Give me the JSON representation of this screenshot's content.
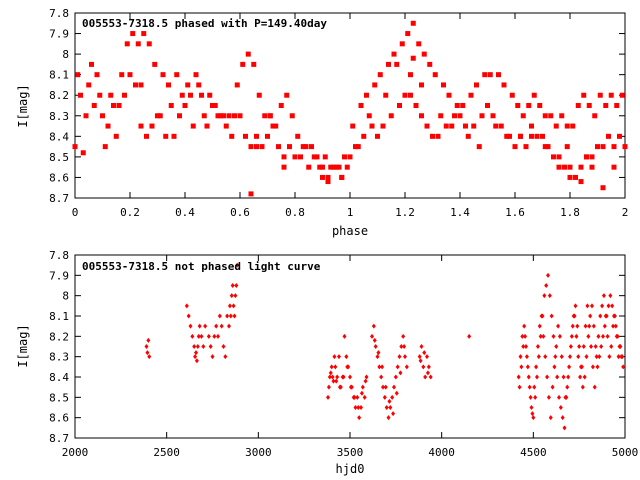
{
  "colors": {
    "points": "#ff0000",
    "axes": "#000000",
    "background": "#ffffff"
  },
  "chart_data": [
    {
      "type": "scatter",
      "title": "005553-7318.5 phased with P=149.40day",
      "xlabel": "phase",
      "ylabel": "I[mag]",
      "xlim": [
        0,
        2
      ],
      "ylim": [
        8.7,
        7.8
      ],
      "y_inverted": true,
      "xticks": [
        "0",
        "0.2",
        "0.4",
        "0.6",
        "0.8",
        "1",
        "1.2",
        "1.4",
        "1.6",
        "1.8",
        "2"
      ],
      "yticks": [
        "7.8",
        "7.9",
        "8",
        "8.1",
        "8.2",
        "8.3",
        "8.4",
        "8.5",
        "8.6",
        "8.7"
      ],
      "grid": false,
      "legend": "none",
      "marker": "filled-square",
      "series": [
        {
          "x": [
            0.0,
            0.02,
            0.05,
            0.07,
            0.1,
            0.12,
            0.15,
            0.18,
            0.2,
            0.22,
            0.24,
            0.26,
            0.28,
            0.3,
            0.33,
            0.35,
            0.38,
            0.4,
            0.42,
            0.45,
            0.47,
            0.5,
            0.52,
            0.55,
            0.58,
            0.6,
            0.62,
            0.64,
            0.66,
            0.68,
            0.7,
            0.72,
            0.74,
            0.76,
            0.78,
            0.8,
            0.82,
            0.85,
            0.87,
            0.9,
            0.92,
            0.94,
            0.96,
            0.98,
            1.0,
            1.02,
            1.05,
            1.08,
            1.1,
            1.12,
            1.15,
            1.18,
            1.2,
            1.22,
            1.24,
            1.26,
            1.28,
            1.3,
            1.32,
            1.35,
            1.38,
            1.4,
            1.42,
            1.45,
            1.48,
            1.5,
            1.52,
            1.55,
            1.58,
            1.6,
            1.62,
            1.64,
            1.66,
            1.68,
            1.7,
            1.72,
            1.74,
            1.76,
            1.78,
            1.8,
            1.82,
            1.84,
            1.86,
            1.88,
            1.9,
            1.92,
            1.94,
            1.96,
            1.98,
            2.0,
            0.01,
            0.04,
            0.06,
            0.09,
            0.11,
            0.14,
            0.17,
            0.19,
            0.21,
            0.23,
            0.25,
            0.27,
            0.29,
            0.32,
            0.34,
            0.37,
            0.39,
            0.41,
            0.44,
            0.46,
            0.49,
            0.51,
            0.54,
            0.56,
            0.59,
            0.61,
            0.63,
            0.65,
            0.67,
            0.69,
            0.71,
            0.73,
            0.75,
            0.77,
            0.79,
            0.81,
            0.84,
            0.86,
            0.88,
            0.91,
            0.93,
            0.95,
            0.97,
            0.99,
            1.01,
            1.04,
            1.06,
            1.09,
            1.11,
            1.14,
            1.16,
            1.19,
            1.21,
            1.23,
            1.25,
            1.27,
            1.29,
            1.31,
            1.34,
            1.36,
            1.39,
            1.41,
            1.44,
            1.46,
            1.49,
            1.51,
            1.54,
            1.56,
            1.59,
            1.61,
            1.63,
            1.65,
            1.67,
            1.69,
            1.71,
            1.73,
            1.75,
            1.77,
            1.79,
            1.81,
            1.83,
            1.85,
            1.87,
            1.89,
            1.91,
            1.93,
            1.95,
            1.97,
            1.99,
            0.03,
            0.08,
            0.13,
            0.16,
            0.24,
            0.31,
            0.36,
            0.43,
            0.48,
            0.53,
            0.57,
            0.66,
            0.71,
            0.76,
            0.83,
            0.89,
            0.92,
            0.97,
            1.03,
            1.07,
            1.13,
            1.17,
            1.22,
            1.26,
            1.33,
            1.37,
            1.43,
            1.47,
            1.53,
            1.57,
            1.62,
            1.66,
            1.71,
            1.76,
            1.8,
            1.84,
            1.88,
            1.92,
            1.96,
            0.64,
            0.9,
            1.23,
            1.79,
            1.86
          ],
          "y": [
            8.45,
            8.2,
            8.15,
            8.25,
            8.3,
            8.35,
            8.4,
            8.2,
            8.1,
            8.15,
            8.35,
            8.4,
            8.35,
            8.3,
            8.4,
            8.25,
            8.3,
            8.25,
            8.2,
            8.15,
            8.3,
            8.25,
            8.3,
            8.35,
            8.3,
            8.3,
            8.4,
            8.45,
            8.4,
            8.45,
            8.4,
            8.35,
            8.45,
            8.5,
            8.45,
            8.5,
            8.5,
            8.55,
            8.5,
            8.55,
            8.6,
            8.55,
            8.55,
            8.5,
            8.5,
            8.45,
            8.4,
            8.35,
            8.4,
            8.35,
            8.3,
            8.25,
            8.2,
            8.2,
            8.25,
            8.3,
            8.35,
            8.4,
            8.4,
            8.35,
            8.3,
            8.3,
            8.35,
            8.35,
            8.3,
            8.25,
            8.3,
            8.35,
            8.4,
            8.45,
            8.4,
            8.45,
            8.4,
            8.4,
            8.4,
            8.45,
            8.5,
            8.55,
            8.55,
            8.55,
            8.6,
            8.55,
            8.5,
            8.5,
            8.45,
            8.45,
            8.4,
            8.45,
            8.4,
            8.45,
            8.1,
            8.3,
            8.05,
            8.2,
            8.45,
            8.25,
            8.1,
            7.95,
            7.9,
            7.95,
            7.9,
            7.95,
            8.05,
            8.1,
            8.15,
            8.1,
            8.2,
            8.15,
            8.1,
            8.2,
            8.2,
            8.25,
            8.3,
            8.3,
            8.15,
            8.05,
            8.0,
            8.05,
            8.2,
            8.3,
            8.3,
            8.35,
            8.25,
            8.2,
            8.3,
            8.4,
            8.45,
            8.45,
            8.5,
            8.5,
            8.55,
            8.55,
            8.6,
            8.55,
            8.35,
            8.25,
            8.2,
            8.15,
            8.1,
            8.05,
            8.0,
            7.95,
            7.9,
            7.85,
            7.95,
            8.0,
            8.05,
            8.1,
            8.15,
            8.2,
            8.25,
            8.25,
            8.2,
            8.15,
            8.1,
            8.1,
            8.1,
            8.15,
            8.2,
            8.25,
            8.3,
            8.25,
            8.2,
            8.25,
            8.3,
            8.3,
            8.35,
            8.3,
            8.35,
            8.35,
            8.25,
            8.2,
            8.25,
            8.3,
            8.2,
            8.25,
            8.2,
            8.25,
            8.2,
            8.48,
            8.1,
            8.2,
            8.25,
            8.15,
            8.3,
            8.4,
            8.35,
            8.35,
            8.3,
            8.4,
            8.45,
            8.3,
            8.55,
            8.45,
            8.55,
            8.62,
            8.6,
            8.45,
            8.3,
            8.2,
            8.05,
            8.1,
            8.15,
            8.3,
            8.35,
            8.4,
            8.45,
            8.35,
            8.4,
            8.4,
            8.35,
            8.45,
            8.5,
            8.6,
            8.62,
            8.55,
            8.65,
            8.55,
            8.68,
            8.6,
            8.02,
            8.45,
            8.5
          ]
        }
      ]
    },
    {
      "type": "scatter",
      "title": "005553-7318.5 not phased light curve",
      "xlabel": "hjd0",
      "ylabel": "I[mag]",
      "xlim": [
        2000,
        5000
      ],
      "ylim": [
        8.7,
        7.8
      ],
      "y_inverted": true,
      "xticks": [
        "2000",
        "2500",
        "3000",
        "3500",
        "4000",
        "4500",
        "5000"
      ],
      "yticks": [
        "7.8",
        "7.9",
        "8",
        "8.1",
        "8.2",
        "8.3",
        "8.4",
        "8.5",
        "8.6",
        "8.7"
      ],
      "grid": false,
      "legend": "none",
      "marker": "small-diamond",
      "series": [
        {
          "x": [
            2390,
            2395,
            2400,
            2405,
            2610,
            2620,
            2630,
            2640,
            2650,
            2655,
            2660,
            2665,
            2670,
            2675,
            2680,
            2690,
            2700,
            2710,
            2730,
            2740,
            2750,
            2760,
            2770,
            2780,
            2790,
            2800,
            2810,
            2820,
            2830,
            2840,
            2845,
            2850,
            2855,
            2860,
            2865,
            2870,
            2875,
            2880,
            2885,
            3380,
            3385,
            3390,
            3395,
            3400,
            3405,
            3410,
            3415,
            3420,
            3430,
            3440,
            3450,
            3460,
            3470,
            3480,
            3490,
            3500,
            3510,
            3520,
            3530,
            3540,
            3550,
            3560,
            3570,
            3580,
            3590,
            3620,
            3630,
            3640,
            3650,
            3660,
            3670,
            3680,
            3690,
            3700,
            3710,
            3720,
            3730,
            3740,
            3750,
            3760,
            3770,
            3780,
            3790,
            3800,
            3810,
            3880,
            3890,
            3900,
            3910,
            3920,
            3930,
            3940,
            4150,
            4420,
            4430,
            4440,
            4450,
            4460,
            4470,
            4480,
            4490,
            4500,
            4510,
            4520,
            4530,
            4540,
            4550,
            4560,
            4570,
            4580,
            4590,
            4600,
            4610,
            4620,
            4630,
            4640,
            4650,
            4660,
            4670,
            4680,
            4690,
            4700,
            4710,
            4720,
            4730,
            4740,
            4750,
            4760,
            4770,
            4780,
            4790,
            4800,
            4810,
            4820,
            4830,
            4840,
            4850,
            4860,
            4870,
            4880,
            4890,
            4900,
            4910,
            4920,
            4930,
            4940,
            4950,
            4960,
            4970,
            4980,
            4990,
            4425,
            4435,
            4445,
            4455,
            4465,
            4475,
            4485,
            4495,
            4505,
            4515,
            4525,
            4535,
            4545,
            4555,
            4565,
            4575,
            4585,
            4595,
            4605,
            4615,
            4625,
            4635,
            4645,
            4655,
            4665,
            4675,
            4685,
            4695,
            4705,
            4715,
            4725,
            4735,
            4745,
            4755,
            4765,
            4775,
            4785,
            4795,
            4805,
            4815,
            4825,
            4835,
            4845,
            4855,
            4865,
            4875,
            4885,
            4895,
            4905,
            4915,
            4925,
            4935,
            4945,
            4955,
            4965,
            4975,
            4985,
            3425,
            3445,
            3465,
            3485,
            3505,
            3525,
            3545,
            3565,
            3585,
            3635,
            3655,
            3675,
            3695,
            3715,
            3735,
            3755,
            3775,
            3795,
            3885,
            3905,
            3925
          ],
          "y": [
            8.25,
            8.28,
            8.22,
            8.3,
            8.05,
            8.1,
            8.15,
            8.2,
            8.25,
            8.3,
            8.28,
            8.32,
            8.25,
            8.2,
            8.15,
            8.2,
            8.25,
            8.15,
            8.2,
            8.25,
            8.3,
            8.2,
            8.15,
            8.2,
            8.1,
            8.15,
            8.25,
            8.3,
            8.1,
            8.15,
            8.05,
            8.1,
            8.0,
            7.95,
            8.05,
            8.1,
            8.0,
            7.95,
            7.85,
            8.5,
            8.45,
            8.4,
            8.38,
            8.35,
            8.4,
            8.42,
            8.3,
            8.35,
            8.4,
            8.3,
            8.45,
            8.4,
            8.2,
            8.3,
            8.35,
            8.4,
            8.45,
            8.5,
            8.55,
            8.5,
            8.6,
            8.55,
            8.45,
            8.5,
            8.4,
            8.2,
            8.15,
            8.25,
            8.3,
            8.35,
            8.4,
            8.45,
            8.5,
            8.55,
            8.6,
            8.55,
            8.5,
            8.45,
            8.4,
            8.35,
            8.3,
            8.25,
            8.2,
            8.3,
            8.35,
            8.3,
            8.25,
            8.35,
            8.4,
            8.3,
            8.35,
            8.4,
            8.2,
            8.4,
            8.3,
            8.2,
            8.15,
            8.25,
            8.35,
            8.45,
            8.55,
            8.6,
            8.5,
            8.4,
            8.3,
            8.2,
            8.1,
            8.0,
            7.95,
            7.9,
            8.0,
            8.1,
            8.2,
            8.3,
            8.4,
            8.5,
            8.55,
            8.6,
            8.65,
            8.5,
            8.4,
            8.3,
            8.2,
            8.1,
            8.05,
            8.15,
            8.25,
            8.35,
            8.45,
            8.4,
            8.3,
            8.2,
            8.1,
            8.05,
            8.15,
            8.25,
            8.35,
            8.3,
            8.25,
            8.2,
            8.15,
            8.1,
            8.05,
            8.0,
            8.05,
            8.1,
            8.15,
            8.2,
            8.25,
            8.3,
            8.35,
            8.45,
            8.35,
            8.25,
            8.2,
            8.3,
            8.4,
            8.5,
            8.58,
            8.45,
            8.35,
            8.25,
            8.15,
            8.1,
            8.2,
            8.3,
            8.4,
            8.5,
            8.6,
            8.45,
            8.35,
            8.25,
            8.15,
            8.2,
            8.3,
            8.4,
            8.5,
            8.45,
            8.35,
            8.25,
            8.15,
            8.1,
            8.2,
            8.3,
            8.4,
            8.35,
            8.25,
            8.15,
            8.05,
            8.15,
            8.25,
            8.35,
            8.45,
            8.3,
            8.2,
            8.1,
            8.05,
            8.0,
            8.1,
            8.2,
            8.3,
            8.25,
            8.15,
            8.1,
            8.2,
            8.3,
            8.25,
            8.3,
            8.42,
            8.45,
            8.4,
            8.35,
            8.45,
            8.5,
            8.55,
            8.48,
            8.42,
            8.22,
            8.28,
            8.35,
            8.45,
            8.52,
            8.58,
            8.48,
            8.38,
            8.25,
            8.32,
            8.28,
            8.38
          ]
        }
      ]
    }
  ]
}
